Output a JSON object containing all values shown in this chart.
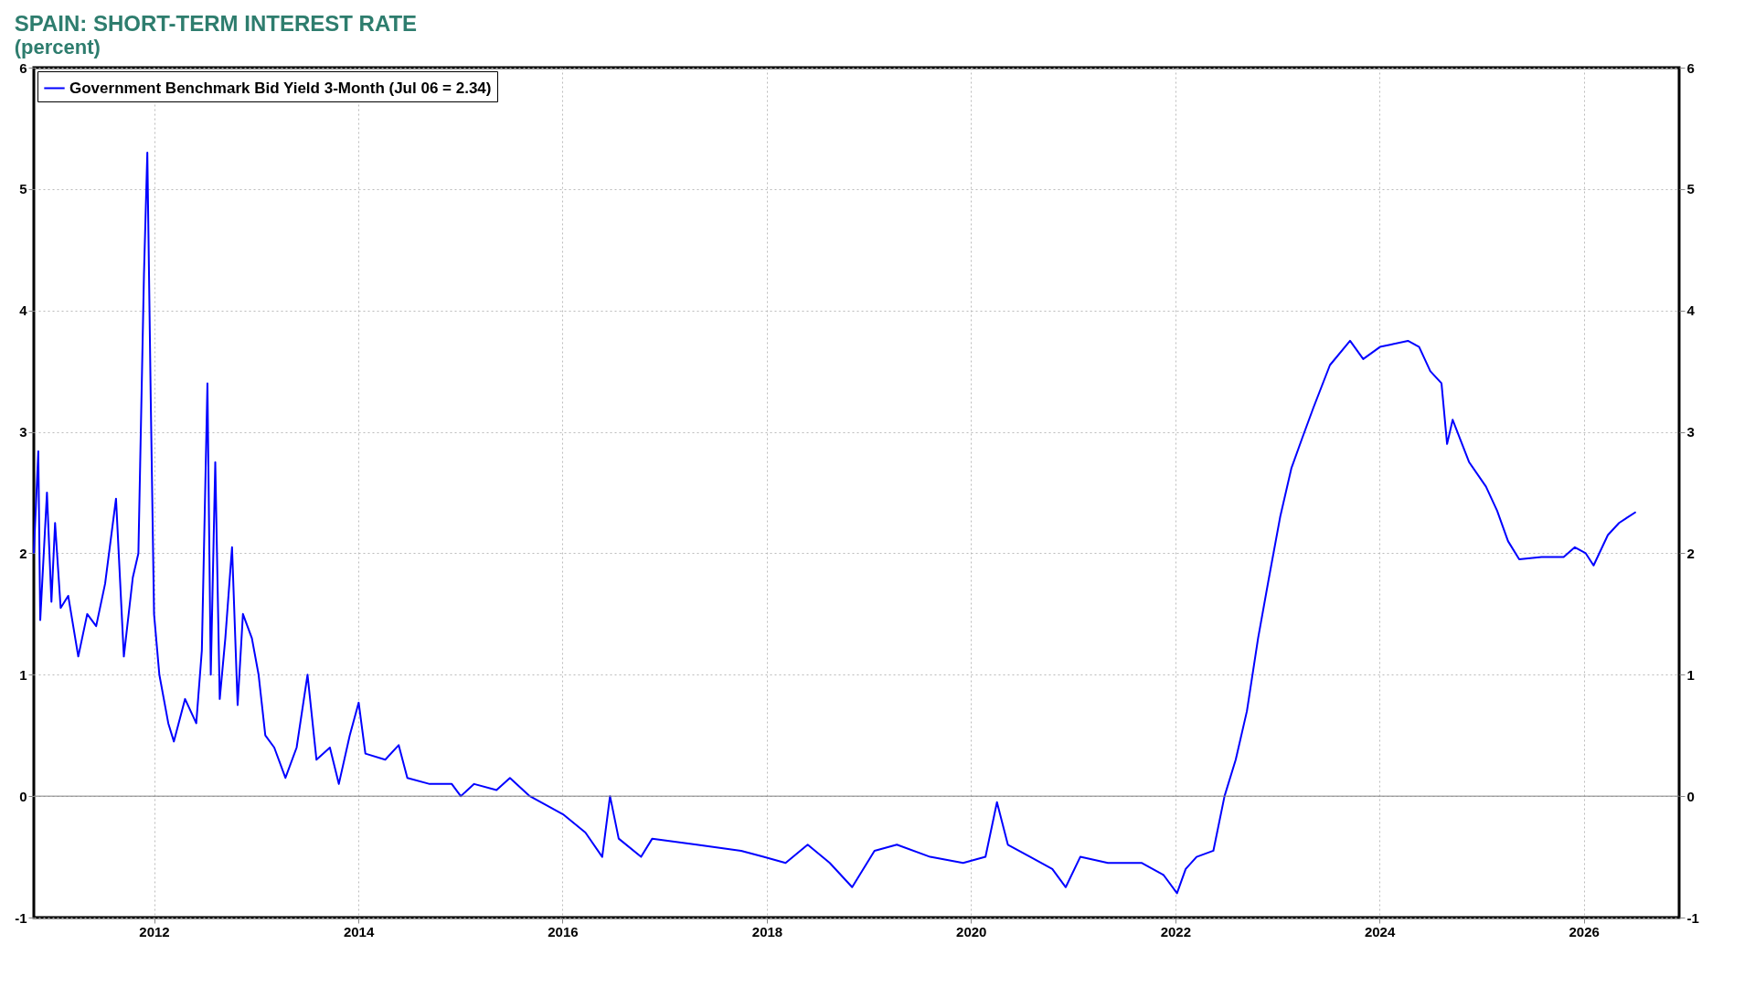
{
  "chart_data": {
    "type": "line",
    "title": "SPAIN: SHORT-TERM INTEREST RATE",
    "subtitle": "(percent)",
    "x": [
      "2010-10-28",
      "2010-11-13",
      "2010-11-20",
      "2010-12-14",
      "2010-12-30",
      "2011-01-12",
      "2011-02-01",
      "2011-02-28",
      "2011-04-05",
      "2011-05-07",
      "2011-06-08",
      "2011-07-10",
      "2011-08-18",
      "2011-09-15",
      "2011-10-17",
      "2011-11-06",
      "2011-11-26",
      "2011-12-08",
      "2011-12-20",
      "2012-01-01",
      "2012-01-20",
      "2012-02-21",
      "2012-03-12",
      "2012-04-21",
      "2012-05-31",
      "2012-06-20",
      "2012-07-10",
      "2012-07-22",
      "2012-08-07",
      "2012-08-23",
      "2012-09-12",
      "2012-10-06",
      "2012-10-26",
      "2012-11-14",
      "2012-12-16",
      "2013-01-09",
      "2013-02-02",
      "2013-03-06",
      "2013-04-15",
      "2013-05-25",
      "2013-07-03",
      "2013-08-04",
      "2013-09-21",
      "2013-10-23",
      "2013-12-01",
      "2014-01-02",
      "2014-01-26",
      "2014-04-07",
      "2014-05-25",
      "2014-06-25",
      "2014-09-13",
      "2014-12-01",
      "2015-01-02",
      "2015-02-19",
      "2015-05-10",
      "2015-06-27",
      "2015-09-06",
      "2015-11-24",
      "2016-01-03",
      "2016-03-23",
      "2016-05-22",
      "2016-06-19",
      "2016-07-20",
      "2016-10-08",
      "2016-11-17",
      "2017-04-25",
      "2017-10-01",
      "2017-12-20",
      "2018-03-09",
      "2018-05-27",
      "2018-08-14",
      "2018-11-02",
      "2019-01-21",
      "2019-04-11",
      "2019-08-08",
      "2019-12-04",
      "2020-02-22",
      "2020-04-03",
      "2020-05-12",
      "2020-07-31",
      "2020-10-18",
      "2020-12-05",
      "2021-01-26",
      "2021-05-05",
      "2021-09-02",
      "2021-11-20",
      "2022-01-07",
      "2022-02-07",
      "2022-03-18",
      "2022-05-17",
      "2022-06-26",
      "2022-08-05",
      "2022-09-14",
      "2022-10-24",
      "2022-12-02",
      "2023-01-11",
      "2023-02-20",
      "2023-03-31",
      "2023-05-10",
      "2023-07-08",
      "2023-09-18",
      "2023-11-04",
      "2024-01-03",
      "2024-02-12",
      "2024-04-12",
      "2024-05-22",
      "2024-07-01",
      "2024-08-10",
      "2024-08-30",
      "2024-09-19",
      "2024-11-17",
      "2025-01-16",
      "2025-02-25",
      "2025-04-05",
      "2025-05-15",
      "2025-08-03",
      "2025-10-21",
      "2025-11-30",
      "2026-01-08",
      "2026-02-05",
      "2026-03-28",
      "2026-05-07",
      "2026-07-06"
    ],
    "series": [
      {
        "name": "Government Benchmark Bid Yield 3-Month (Jul 06 = 2.34)",
        "color": "#0000ff",
        "values": [
          2.0,
          2.84,
          1.45,
          2.5,
          1.6,
          2.25,
          1.55,
          1.65,
          1.15,
          1.5,
          1.4,
          1.75,
          2.45,
          1.15,
          1.8,
          2.0,
          4.3,
          5.3,
          3.3,
          1.5,
          1.0,
          0.6,
          0.45,
          0.8,
          0.6,
          1.2,
          3.4,
          1.0,
          2.75,
          0.8,
          1.3,
          2.05,
          0.75,
          1.5,
          1.3,
          1.0,
          0.5,
          0.4,
          0.15,
          0.4,
          1.0,
          0.3,
          0.4,
          0.1,
          0.5,
          0.77,
          0.35,
          0.3,
          0.42,
          0.15,
          0.1,
          0.1,
          0.0,
          0.1,
          0.05,
          0.15,
          0.0,
          -0.1,
          -0.15,
          -0.3,
          -0.5,
          0.0,
          -0.35,
          -0.5,
          -0.35,
          -0.4,
          -0.45,
          -0.5,
          -0.55,
          -0.4,
          -0.55,
          -0.75,
          -0.45,
          -0.4,
          -0.5,
          -0.55,
          -0.5,
          -0.05,
          -0.4,
          -0.5,
          -0.6,
          -0.75,
          -0.5,
          -0.55,
          -0.55,
          -0.65,
          -0.8,
          -0.6,
          -0.5,
          -0.45,
          0.0,
          0.3,
          0.7,
          1.3,
          1.8,
          2.3,
          2.7,
          2.95,
          3.2,
          3.55,
          3.75,
          3.6,
          3.7,
          3.72,
          3.75,
          3.7,
          3.5,
          3.4,
          2.9,
          3.1,
          2.75,
          2.55,
          2.35,
          2.1,
          1.95,
          1.97,
          1.97,
          2.05,
          2.0,
          1.9,
          2.15,
          2.25,
          2.34
        ]
      }
    ],
    "xlim": [
      "2010-10-28",
      "2026-12-08"
    ],
    "xticks": [
      "2012",
      "2014",
      "2016",
      "2018",
      "2020",
      "2022",
      "2024",
      "2026"
    ],
    "ylim": [
      -1,
      6
    ],
    "yticks": [
      -1,
      0,
      1,
      2,
      3,
      4,
      5,
      6
    ],
    "y2lim": [
      -1,
      6
    ],
    "y2ticks": [
      -1,
      0,
      1,
      2,
      3,
      4,
      5,
      6
    ],
    "ref_lines": [
      {
        "axis": "y",
        "value": 0,
        "color": "#808080"
      }
    ],
    "grid": true,
    "legend": "top left",
    "line_style": "solid",
    "marker": "none"
  }
}
